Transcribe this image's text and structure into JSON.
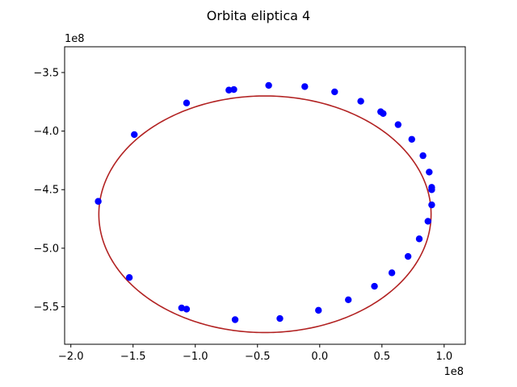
{
  "chart_data": {
    "type": "scatter",
    "title": "Orbita eliptica 4",
    "xlabel": "",
    "ylabel": "",
    "x_offset_label": "1e8",
    "y_offset_label": "1e8",
    "xlim": [
      -2.05,
      1.17
    ],
    "ylim": [
      -5.82,
      -3.28
    ],
    "x_ticks": [
      -2.0,
      -1.5,
      -1.0,
      -0.5,
      0.0,
      0.5,
      1.0
    ],
    "x_tick_labels": [
      "−2.0",
      "−1.5",
      "−1.0",
      "−0.5",
      "0.0",
      "0.5",
      "1.0"
    ],
    "y_ticks": [
      -3.5,
      -4.0,
      -4.5,
      -5.0,
      -5.5
    ],
    "y_tick_labels": [
      "−3.5",
      "−4.0",
      "−4.5",
      "−5.0",
      "−5.5"
    ],
    "grid": false,
    "fit_curve": {
      "type": "ellipse",
      "color": "#b22222",
      "center": [
        -0.44,
        -4.71
      ],
      "semi_axis_x": 1.335,
      "semi_axis_y": 1.01
    },
    "points_color": "#0000ff",
    "points": [
      {
        "x": -1.78,
        "y": -4.6
      },
      {
        "x": -1.53,
        "y": -5.25
      },
      {
        "x": -1.49,
        "y": -4.03
      },
      {
        "x": -1.11,
        "y": -5.51
      },
      {
        "x": -1.07,
        "y": -5.52
      },
      {
        "x": -1.07,
        "y": -3.76
      },
      {
        "x": -0.73,
        "y": -3.65
      },
      {
        "x": -0.69,
        "y": -3.645
      },
      {
        "x": -0.68,
        "y": -5.61
      },
      {
        "x": -0.41,
        "y": -3.61
      },
      {
        "x": -0.32,
        "y": -5.6
      },
      {
        "x": -0.12,
        "y": -3.62
      },
      {
        "x": -0.01,
        "y": -5.53
      },
      {
        "x": 0.12,
        "y": -3.665
      },
      {
        "x": 0.23,
        "y": -5.44
      },
      {
        "x": 0.33,
        "y": -3.745
      },
      {
        "x": 0.44,
        "y": -5.325
      },
      {
        "x": 0.49,
        "y": -3.835
      },
      {
        "x": 0.51,
        "y": -3.85
      },
      {
        "x": 0.58,
        "y": -5.21
      },
      {
        "x": 0.63,
        "y": -3.945
      },
      {
        "x": 0.71,
        "y": -5.07
      },
      {
        "x": 0.74,
        "y": -4.07
      },
      {
        "x": 0.8,
        "y": -4.92
      },
      {
        "x": 0.83,
        "y": -4.21
      },
      {
        "x": 0.87,
        "y": -4.77
      },
      {
        "x": 0.88,
        "y": -4.35
      },
      {
        "x": 0.9,
        "y": -4.48
      },
      {
        "x": 0.9,
        "y": -4.5
      },
      {
        "x": 0.9,
        "y": -4.63
      }
    ]
  }
}
